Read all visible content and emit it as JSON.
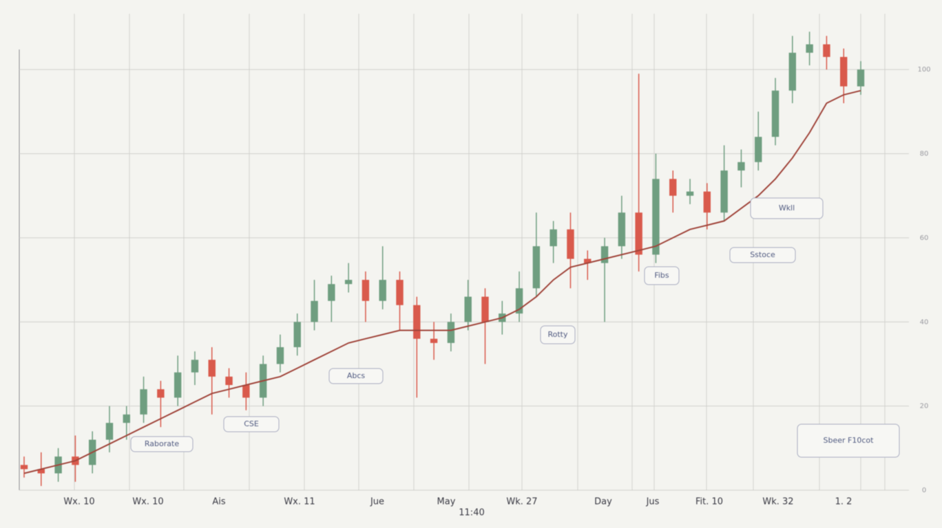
{
  "chart_data": {
    "type": "candlestick",
    "x_labels": [
      "Wx. 10",
      "Wx. 10",
      "Ais",
      "Wx. 11",
      "Jue",
      "May",
      "Wk. 27",
      "Day",
      "Jus",
      "Fit. 10",
      "Wk. 32",
      "1. 2"
    ],
    "x_sublabel": "11:40",
    "ylim": [
      0,
      110
    ],
    "yticks": [
      0,
      20,
      40,
      60,
      80,
      100
    ],
    "grid": true,
    "up_color": "#6f9e80",
    "down_color": "#d95a4c",
    "open": [
      6,
      5,
      4,
      8,
      6,
      12,
      16,
      18,
      24,
      22,
      28,
      31,
      27,
      25,
      22,
      30,
      34,
      40,
      45,
      49,
      50,
      45,
      50,
      44,
      36,
      35,
      40,
      46,
      40,
      42,
      48,
      58,
      62,
      55,
      54,
      58,
      66,
      56,
      74,
      70,
      71,
      66,
      76,
      78,
      84,
      95,
      104,
      106,
      103,
      96
    ],
    "high": [
      8,
      9,
      10,
      13,
      14,
      20,
      20,
      27,
      26,
      32,
      33,
      34,
      29,
      28,
      32,
      37,
      42,
      50,
      51,
      54,
      52,
      58,
      52,
      46,
      40,
      42,
      50,
      48,
      45,
      52,
      66,
      64,
      66,
      57,
      60,
      70,
      99,
      80,
      76,
      74,
      73,
      82,
      81,
      90,
      98,
      108,
      109,
      108,
      105,
      102
    ],
    "low": [
      3,
      1,
      2,
      2,
      4,
      9,
      12,
      16,
      15,
      20,
      25,
      18,
      22,
      19,
      20,
      28,
      32,
      38,
      40,
      47,
      40,
      43,
      38,
      22,
      31,
      33,
      38,
      30,
      37,
      40,
      46,
      54,
      48,
      50,
      40,
      55,
      52,
      54,
      66,
      68,
      62,
      64,
      72,
      76,
      82,
      92,
      101,
      100,
      92,
      94
    ],
    "close": [
      5,
      4,
      8,
      6,
      12,
      16,
      18,
      24,
      22,
      28,
      31,
      27,
      25,
      22,
      30,
      34,
      40,
      45,
      49,
      50,
      45,
      50,
      44,
      36,
      35,
      40,
      46,
      40,
      42,
      48,
      58,
      62,
      55,
      54,
      58,
      66,
      56,
      74,
      70,
      71,
      66,
      76,
      78,
      84,
      95,
      104,
      106,
      103,
      96,
      100
    ],
    "ma": {
      "color": "#a0443a",
      "values": [
        4,
        5,
        6,
        7,
        9,
        11,
        13,
        15,
        17,
        19,
        21,
        23,
        24,
        25,
        26,
        27,
        29,
        31,
        33,
        35,
        36,
        37,
        38,
        38,
        38,
        38,
        39,
        40,
        41,
        43,
        46,
        50,
        53,
        54,
        55,
        56,
        57,
        58,
        60,
        62,
        63,
        64,
        67,
        70,
        74,
        79,
        85,
        92,
        94,
        95
      ]
    },
    "annotations": [
      "Raborate",
      "CSE",
      "Abcs",
      "Rotty",
      "Fibs",
      "Wkll",
      "Sstoce",
      "Sbeer F10cot"
    ]
  }
}
